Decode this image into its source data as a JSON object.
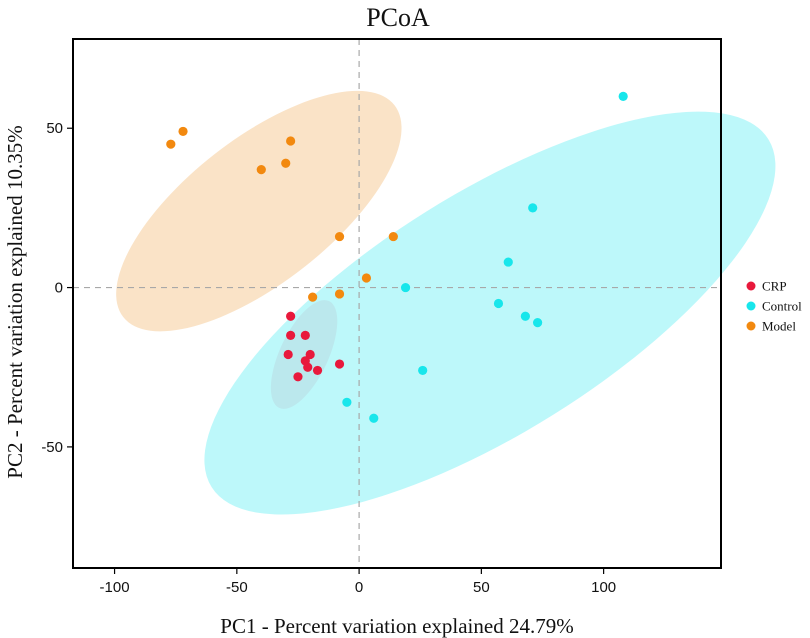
{
  "chart_data": {
    "type": "scatter",
    "title": "PCoA",
    "xlabel": "PC1 - Percent variation explained 24.79%",
    "ylabel": "PC2 - Percent variation explained 10.35%",
    "xlim": [
      -117,
      148
    ],
    "ylim": [
      -88,
      78
    ],
    "xticks": [
      -100,
      -50,
      0,
      50,
      100
    ],
    "yticks": [
      50,
      0,
      -50
    ],
    "xtick_labels": [
      "-100",
      "-50",
      "0",
      "50",
      "100"
    ],
    "ytick_labels": [
      "50",
      "0",
      "-50"
    ],
    "reference_lines": {
      "x": 0,
      "y": 0,
      "style": "dashed"
    },
    "legend_position": "right",
    "series": [
      {
        "name": "CRP",
        "color": "#e8193c",
        "ellipse_color": "#f4b6c2",
        "ellipse": {
          "cx": -22.5,
          "cy": -21,
          "rx": 9.9,
          "ry": 18.5,
          "angle_deg": 25
        },
        "points": [
          {
            "x": -28,
            "y": -9
          },
          {
            "x": -28,
            "y": -15
          },
          {
            "x": -22,
            "y": -15
          },
          {
            "x": -29,
            "y": -21
          },
          {
            "x": -20,
            "y": -21
          },
          {
            "x": -22,
            "y": -23
          },
          {
            "x": -21,
            "y": -25
          },
          {
            "x": -25,
            "y": -28
          },
          {
            "x": -17,
            "y": -26
          },
          {
            "x": -8,
            "y": -24
          }
        ]
      },
      {
        "name": "Control",
        "color": "#18e6eb",
        "ellipse_color": "#9ef5f7",
        "ellipse": {
          "cx": 53.5,
          "cy": -8,
          "rx": 49,
          "ry": 103,
          "angle_deg": 58
        },
        "points": [
          {
            "x": 108,
            "y": 60
          },
          {
            "x": 71,
            "y": 25
          },
          {
            "x": 61,
            "y": 8
          },
          {
            "x": 19,
            "y": 0
          },
          {
            "x": 57,
            "y": -5
          },
          {
            "x": 68,
            "y": -9
          },
          {
            "x": 73,
            "y": -11
          },
          {
            "x": 26,
            "y": -26
          },
          {
            "x": -5,
            "y": -36
          },
          {
            "x": 6,
            "y": -41
          }
        ]
      },
      {
        "name": "Model",
        "color": "#f2890f",
        "ellipse_color": "#f8d6ad",
        "ellipse": {
          "cx": -41,
          "cy": 24,
          "rx": 29.5,
          "ry": 54,
          "angle_deg": 52
        },
        "points": [
          {
            "x": -77,
            "y": 45
          },
          {
            "x": -72,
            "y": 49
          },
          {
            "x": -28,
            "y": 46
          },
          {
            "x": -40,
            "y": 37
          },
          {
            "x": -30,
            "y": 39
          },
          {
            "x": -8,
            "y": 16
          },
          {
            "x": 14,
            "y": 16
          },
          {
            "x": 3,
            "y": 3
          },
          {
            "x": -8,
            "y": -2
          },
          {
            "x": -19,
            "y": -3
          }
        ]
      }
    ]
  }
}
